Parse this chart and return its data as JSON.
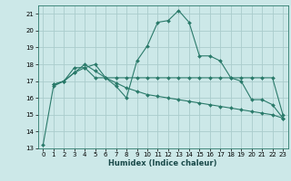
{
  "xlabel": "Humidex (Indice chaleur)",
  "bg_color": "#cce8e8",
  "grid_color": "#aacccc",
  "line_color": "#2a7a6a",
  "xlim": [
    -0.5,
    23.5
  ],
  "ylim": [
    13,
    21.5
  ],
  "yticks": [
    13,
    14,
    15,
    16,
    17,
    18,
    19,
    20,
    21
  ],
  "xticks": [
    0,
    1,
    2,
    3,
    4,
    5,
    6,
    7,
    8,
    9,
    10,
    11,
    12,
    13,
    14,
    15,
    16,
    17,
    18,
    19,
    20,
    21,
    22,
    23
  ],
  "series1": {
    "x": [
      0,
      1,
      2,
      3,
      4,
      5,
      6,
      7,
      8,
      9,
      10,
      11,
      12,
      13,
      14,
      15,
      16,
      17,
      18,
      19,
      20,
      21,
      22,
      23
    ],
    "y": [
      13.2,
      16.7,
      17.0,
      17.8,
      17.8,
      18.0,
      17.2,
      16.7,
      16.0,
      18.2,
      19.1,
      20.5,
      20.6,
      21.2,
      20.5,
      18.5,
      18.5,
      18.2,
      17.2,
      17.0,
      15.9,
      15.9,
      15.6,
      14.8
    ]
  },
  "series2": {
    "x": [
      1,
      2,
      3,
      4,
      5,
      6,
      7,
      8,
      9,
      10,
      11,
      12,
      13,
      14,
      15,
      16,
      17,
      18,
      19,
      20,
      21,
      22,
      23
    ],
    "y": [
      16.8,
      17.0,
      17.5,
      17.8,
      17.2,
      17.2,
      17.2,
      17.2,
      17.2,
      17.2,
      17.2,
      17.2,
      17.2,
      17.2,
      17.2,
      17.2,
      17.2,
      17.2,
      17.2,
      17.2,
      17.2,
      17.2,
      15.0
    ]
  },
  "series3": {
    "x": [
      1,
      2,
      3,
      4,
      5,
      6,
      7,
      8,
      9,
      10,
      11,
      12,
      13,
      14,
      15,
      16,
      17,
      18,
      19,
      20,
      21,
      22,
      23
    ],
    "y": [
      16.8,
      17.0,
      17.5,
      18.0,
      17.6,
      17.2,
      16.9,
      16.6,
      16.4,
      16.2,
      16.1,
      16.0,
      15.9,
      15.8,
      15.7,
      15.6,
      15.5,
      15.4,
      15.3,
      15.2,
      15.1,
      15.0,
      14.8
    ]
  }
}
